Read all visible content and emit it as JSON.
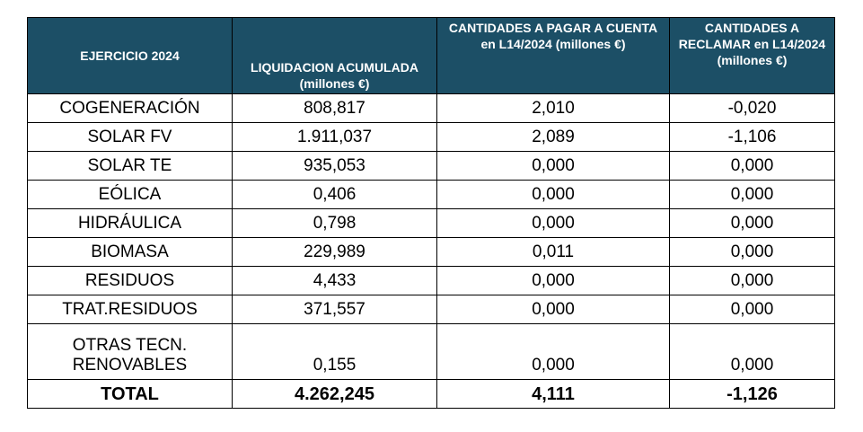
{
  "header": {
    "col1": "EJERCICIO 2024",
    "col2": "LIQUIDACION ACUMULADA (millones €)",
    "col3": "CANTIDADES A PAGAR A CUENTA en L14/2024 (millones €)",
    "col4": "CANTIDADES A RECLAMAR en L14/2024 (millones €)"
  },
  "rows": [
    {
      "tech": "COGENERACIÓN",
      "liq": "808,817",
      "pagar": "2,010",
      "reclamar": "-0,020"
    },
    {
      "tech": "SOLAR FV",
      "liq": "1.911,037",
      "pagar": "2,089",
      "reclamar": "-1,106"
    },
    {
      "tech": "SOLAR TE",
      "liq": "935,053",
      "pagar": "0,000",
      "reclamar": "0,000"
    },
    {
      "tech": "EÓLICA",
      "liq": "0,406",
      "pagar": "0,000",
      "reclamar": "0,000"
    },
    {
      "tech": "HIDRÁULICA",
      "liq": "0,798",
      "pagar": "0,000",
      "reclamar": "0,000"
    },
    {
      "tech": "BIOMASA",
      "liq": "229,989",
      "pagar": "0,011",
      "reclamar": "0,000"
    },
    {
      "tech": "RESIDUOS",
      "liq": "4,433",
      "pagar": "0,000",
      "reclamar": "0,000"
    },
    {
      "tech": "TRAT.RESIDUOS",
      "liq": "371,557",
      "pagar": "0,000",
      "reclamar": "0,000"
    },
    {
      "tech_line1": "OTRAS TECN.",
      "tech_line2": "RENOVABLES",
      "liq": "0,155",
      "pagar": "0,000",
      "reclamar": "0,000"
    }
  ],
  "total": {
    "tech": "TOTAL",
    "liq": "4.262,245",
    "pagar": "4,111",
    "reclamar": "-1,126"
  },
  "colors": {
    "header_bg": "#1c4f66",
    "header_text": "#ffffff",
    "border": "#000000"
  }
}
